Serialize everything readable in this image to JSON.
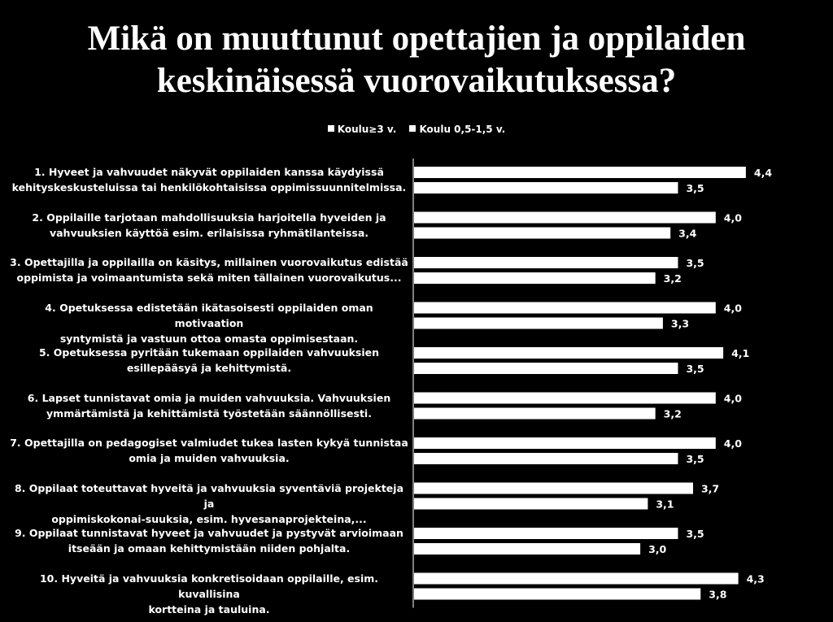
{
  "chart_data": {
    "type": "bar",
    "orientation": "horizontal",
    "title": "Mikä on muuttunut opettajien ja oppilaiden keskinäisessä vuorovaikutuksessa?",
    "title_lines": [
      "Mikä on muuttunut opettajien ja oppilaiden",
      "keskinäisessä vuorovaikutuksessa?"
    ],
    "legend_position": "top",
    "xlim": [
      0,
      5
    ],
    "grid": false,
    "categories": [
      [
        "1. Hyveet ja vahvuudet näkyvät oppilaiden kanssa käydyissä",
        "kehityskeskusteluissa tai henkilökohtaisissa oppimissuunnitelmissa."
      ],
      [
        "2. Oppilaille tarjotaan mahdollisuuksia harjoitella hyveiden ja",
        "vahvuuksien käyttöä esim. erilaisissa ryhmätilanteissa."
      ],
      [
        "3. Opettajilla ja oppilailla on käsitys, millainen vuorovaikutus edistää",
        "oppimista ja voimaantumista sekä miten tällainen vuorovaikutus..."
      ],
      [
        "4. Opetuksessa edistetään ikätasoisesti oppilaiden oman motivaation",
        "syntymistä ja vastuun ottoa omasta oppimisestaan."
      ],
      [
        "5. Opetuksessa pyritään tukemaan oppilaiden vahvuuksien",
        "esillepääsyä ja kehittymistä."
      ],
      [
        "6. Lapset tunnistavat omia ja muiden vahvuuksia. Vahvuuksien",
        "ymmärtämistä ja kehittämistä työstetään säännöllisesti."
      ],
      [
        "7. Opettajilla on pedagogiset valmiudet tukea lasten kykyä tunnistaa",
        "omia ja muiden vahvuuksia."
      ],
      [
        "8. Oppilaat toteuttavat hyveitä ja vahvuuksia syventäviä projekteja ja",
        "oppimiskokonai-suuksia, esim. hyvesanaprojekteina,..."
      ],
      [
        "9. Oppilaat tunnistavat hyveet ja vahvuudet ja pystyvät arvioimaan",
        "itseään ja omaan kehittymistään niiden pohjalta."
      ],
      [
        "10. Hyveitä ja vahvuuksia konkretisoidaan oppilaille, esim. kuvallisina",
        "kortteina ja tauluina."
      ]
    ],
    "series": [
      {
        "name": "Koulu≥3 v.",
        "color": "#ffffff",
        "values": [
          4.4,
          4.0,
          3.5,
          4.0,
          4.1,
          4.0,
          4.0,
          3.7,
          3.5,
          4.3
        ],
        "labels": [
          "4,4",
          "4,0",
          "3,5",
          "4,0",
          "4,1",
          "4,0",
          "4,0",
          "3,7",
          "3,5",
          "4,3"
        ]
      },
      {
        "name": "Koulu 0,5-1,5 v.",
        "color": "#ffffff",
        "values": [
          3.5,
          3.4,
          3.2,
          3.3,
          3.5,
          3.2,
          3.5,
          3.1,
          3.0,
          3.8
        ],
        "labels": [
          "3,5",
          "3,4",
          "3,2",
          "3,3",
          "3,5",
          "3,2",
          "3,5",
          "3,1",
          "3,0",
          "3,8"
        ]
      }
    ]
  },
  "colors": {
    "background": "#000000",
    "bar": "#ffffff",
    "text": "#ffffff"
  }
}
